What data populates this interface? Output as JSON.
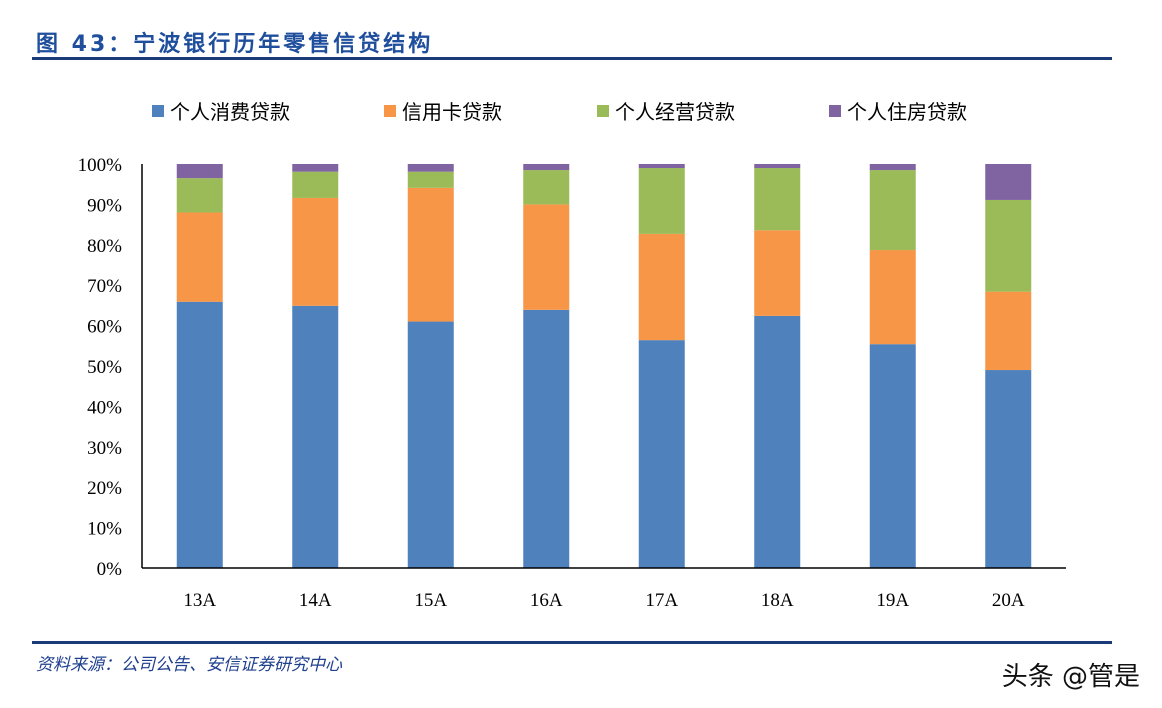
{
  "title": "图 43：宁波银行历年零售信贷结构",
  "source": "资料来源：公司公告、安信证券研究中心",
  "watermark": "头条 @管是",
  "chart_data": {
    "type": "bar",
    "stacked": true,
    "categories": [
      "13A",
      "14A",
      "15A",
      "16A",
      "17A",
      "18A",
      "19A",
      "20A"
    ],
    "series": [
      {
        "name": "个人消费贷款",
        "color": "#4f81bd",
        "values": [
          65.9,
          64.9,
          61.0,
          63.9,
          56.4,
          62.4,
          55.4,
          49.0
        ]
      },
      {
        "name": "信用卡贷款",
        "color": "#f79646",
        "values": [
          22.1,
          26.7,
          33.1,
          26.1,
          26.3,
          21.2,
          23.3,
          19.4
        ]
      },
      {
        "name": "个人经营贷款",
        "color": "#9bbb59",
        "values": [
          8.5,
          6.5,
          4.0,
          8.5,
          16.3,
          15.4,
          19.8,
          22.7
        ]
      },
      {
        "name": "个人住房贷款",
        "color": "#8064a2",
        "values": [
          3.5,
          1.9,
          1.9,
          1.5,
          1.0,
          1.0,
          1.5,
          8.9
        ]
      }
    ],
    "yticks": [
      "0%",
      "10%",
      "20%",
      "30%",
      "40%",
      "50%",
      "60%",
      "70%",
      "80%",
      "90%",
      "100%"
    ],
    "ylim": [
      0,
      100
    ],
    "grid": false,
    "legend": "top"
  }
}
